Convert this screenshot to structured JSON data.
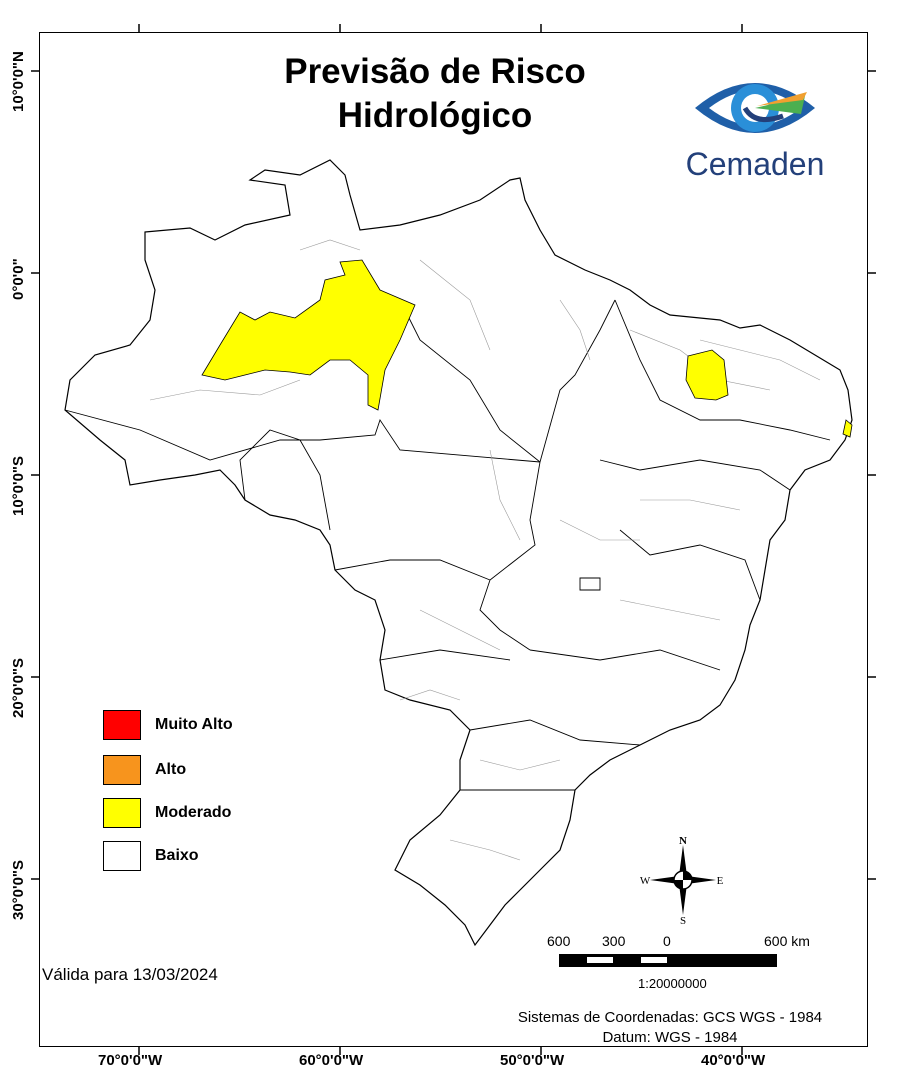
{
  "map": {
    "title_line1": "Previsão de Risco",
    "title_line2": "Hidrológico",
    "valid_text": "Válida para 13/03/2024",
    "coord_system": "Sistemas de Coordenadas: GCS WGS - 1984",
    "datum": "Datum: WGS - 1984"
  },
  "logo": {
    "name": "Cemaden",
    "colors": {
      "blue": "#1f5fa8",
      "dark": "#23407a",
      "green": "#4caf50",
      "orange": "#f0a030"
    }
  },
  "axes": {
    "x_labels": [
      "70°0'0\"W",
      "60°0'0\"W",
      "50°0'0\"W",
      "40°0'0\"W"
    ],
    "y_labels": [
      "10°0'0\"N",
      "0°0'0\"",
      "10°0'0\"S",
      "20°0'0\"S",
      "30°0'0\"S"
    ]
  },
  "legend": [
    {
      "label": "Muito Alto",
      "color": "#ff0000"
    },
    {
      "label": "Alto",
      "color": "#f7941d"
    },
    {
      "label": "Moderado",
      "color": "#ffff00"
    },
    {
      "label": "Baixo",
      "color": "#ffffff"
    }
  ],
  "compass": {
    "n": "N",
    "s": "S",
    "e": "E",
    "w": "W"
  },
  "scale": {
    "labels": [
      "600",
      "300",
      "0",
      "600 km"
    ],
    "ratio": "1:20000000"
  },
  "colors": {
    "border": "#000000",
    "moderate": "#ffff00",
    "low": "#ffffff",
    "inner_border": "#9a9a9a"
  }
}
